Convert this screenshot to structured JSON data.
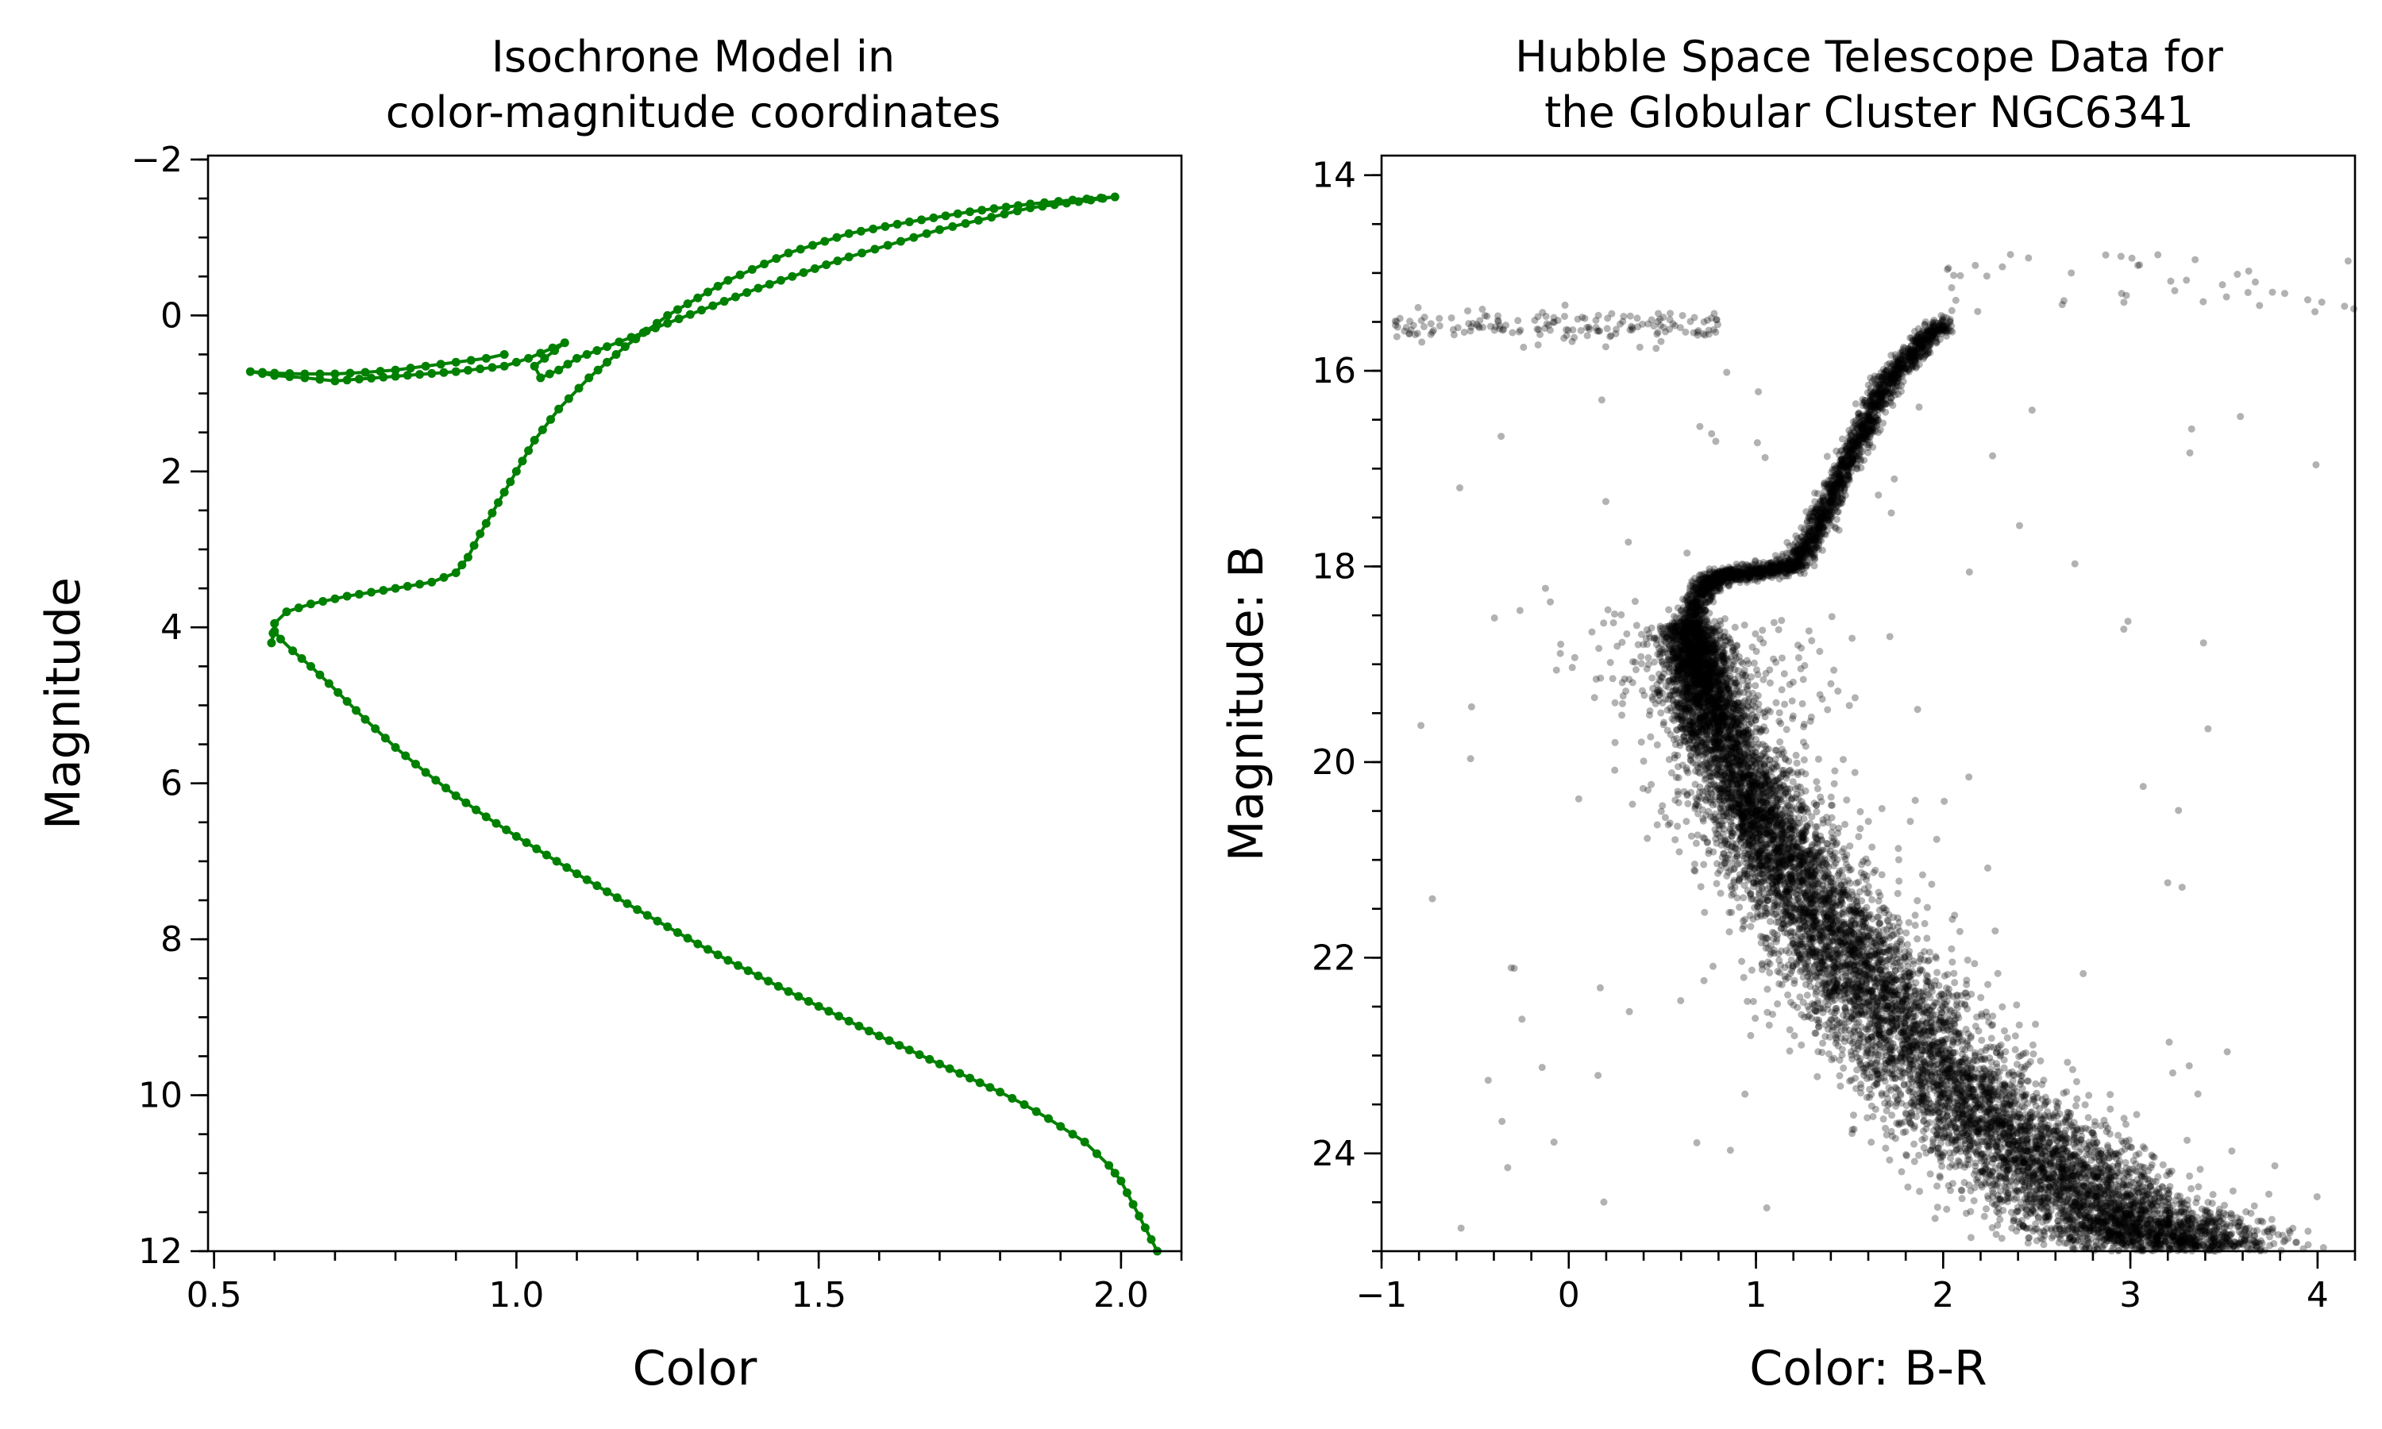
{
  "figure": {
    "charts": [
      {
        "title_lines": [
          "Isochrone Model in",
          "color-magnitude coordinates"
        ],
        "xlabel": "Color",
        "ylabel": "Magnitude",
        "x_ticks": [
          "0.5",
          "1.0",
          "1.5",
          "2.0"
        ],
        "y_ticks": [
          "−2",
          "0",
          "2",
          "4",
          "6",
          "8",
          "10",
          "12"
        ]
      },
      {
        "title_lines": [
          "Hubble Space Telescope Data for",
          "the Globular Cluster NGC6341"
        ],
        "xlabel": "Color: B-R",
        "ylabel": "Magnitude: B",
        "x_ticks": [
          "−1",
          "0",
          "1",
          "2",
          "3",
          "4"
        ],
        "y_ticks": [
          "14",
          "16",
          "18",
          "20",
          "22",
          "24"
        ]
      }
    ]
  },
  "chart_data": [
    {
      "type": "line",
      "title": "Isochrone Model in\ncolor-magnitude coordinates",
      "xlabel": "Color",
      "ylabel": "Magnitude",
      "xlim": [
        0.49,
        2.1
      ],
      "ylim": [
        12,
        -2.05
      ],
      "y_inverted": true,
      "x_ticks": [
        0.5,
        1.0,
        1.5,
        2.0
      ],
      "y_ticks": [
        -2,
        0,
        2,
        4,
        6,
        8,
        10,
        12
      ],
      "grid": false,
      "series": [
        {
          "color": "#008000",
          "marker": "circle",
          "x": [
            2.06,
            2.04,
            2.02,
            2.0,
            1.98,
            1.96,
            1.94,
            1.92,
            1.88,
            1.84,
            1.8,
            1.75,
            1.7,
            1.65,
            1.6,
            1.55,
            1.5,
            1.45,
            1.4,
            1.35,
            1.3,
            1.25,
            1.2,
            1.15,
            1.1,
            1.05,
            1.0,
            0.95,
            0.9,
            0.85,
            0.8,
            0.75,
            0.72,
            0.69,
            0.66,
            0.63,
            0.61,
            0.6,
            0.595,
            0.6,
            0.62,
            0.66,
            0.72,
            0.8,
            0.86,
            0.9,
            0.92,
            0.94,
            0.97,
            1.0,
            1.03,
            1.07,
            1.12,
            1.18,
            1.25,
            1.35,
            1.45,
            1.55,
            1.65,
            1.75,
            1.85,
            1.92,
            1.99,
            1.85,
            1.7,
            1.55,
            1.4,
            1.25,
            1.15,
            1.1,
            1.07,
            1.04,
            1.03,
            1.08,
            1.02,
            1.0,
            0.98,
            0.9,
            0.8,
            0.7,
            0.65,
            0.6,
            0.56,
            0.6,
            0.65,
            0.7,
            0.75,
            0.8,
            0.85,
            0.9,
            0.95,
            0.98
          ],
          "y": [
            12.0,
            11.7,
            11.4,
            11.1,
            10.9,
            10.75,
            10.6,
            10.5,
            10.3,
            10.12,
            9.96,
            9.78,
            9.6,
            9.42,
            9.24,
            9.05,
            8.86,
            8.67,
            8.47,
            8.27,
            8.06,
            7.84,
            7.62,
            7.39,
            7.16,
            6.92,
            6.68,
            6.43,
            6.16,
            5.86,
            5.54,
            5.18,
            4.95,
            4.72,
            4.5,
            4.3,
            4.15,
            4.05,
            4.2,
            3.95,
            3.8,
            3.7,
            3.6,
            3.5,
            3.42,
            3.3,
            3.1,
            2.8,
            2.4,
            2.0,
            1.6,
            1.2,
            0.8,
            0.4,
            0.0,
            -0.45,
            -0.8,
            -1.05,
            -1.2,
            -1.33,
            -1.43,
            -1.48,
            -1.52,
            -1.38,
            -1.1,
            -0.75,
            -0.35,
            0.1,
            0.4,
            0.55,
            0.7,
            0.8,
            0.65,
            0.35,
            0.55,
            0.6,
            0.65,
            0.72,
            0.78,
            0.84,
            0.8,
            0.77,
            0.72,
            0.74,
            0.75,
            0.75,
            0.73,
            0.7,
            0.65,
            0.6,
            0.55,
            0.5
          ]
        }
      ]
    },
    {
      "type": "scatter",
      "title": "Hubble Space Telescope Data for\nthe Globular Cluster NGC6341",
      "xlabel": "Color: B-R",
      "ylabel": "Magnitude: B",
      "xlim": [
        -1.0,
        4.2
      ],
      "ylim": [
        25,
        13.8
      ],
      "y_inverted": true,
      "x_ticks": [
        -1,
        0,
        1,
        2,
        3,
        4
      ],
      "y_ticks": [
        14,
        16,
        18,
        20,
        22,
        24
      ],
      "grid": false,
      "series": [
        {
          "color": "#000000",
          "marker": "circle",
          "alpha": 0.3,
          "description_of_distribution": "dense main sequence, subgiant branch, red giant branch and horizontal branch",
          "ridge_line": {
            "x": [
              3.3,
              3.0,
              2.6,
              2.2,
              1.8,
              1.5,
              1.2,
              1.0,
              0.8,
              0.7,
              0.65,
              0.7,
              0.8,
              1.0,
              1.2,
              1.3,
              1.4,
              1.5,
              1.6,
              1.7,
              1.85,
              2.0
            ],
            "y": [
              25.0,
              24.7,
              24.2,
              23.6,
              22.8,
              22.0,
              21.2,
              20.5,
              19.7,
              19.1,
              18.6,
              18.25,
              18.1,
              18.05,
              18.0,
              17.7,
              17.3,
              16.9,
              16.5,
              16.1,
              15.8,
              15.5
            ]
          },
          "horizontal_branch": {
            "x_range": [
              -0.95,
              0.8
            ],
            "y_center": 15.55
          },
          "red_giant_tip": {
            "x_range": [
              2.0,
              4.2
            ],
            "y_range": [
              14.8,
              15.4
            ]
          }
        }
      ]
    }
  ]
}
